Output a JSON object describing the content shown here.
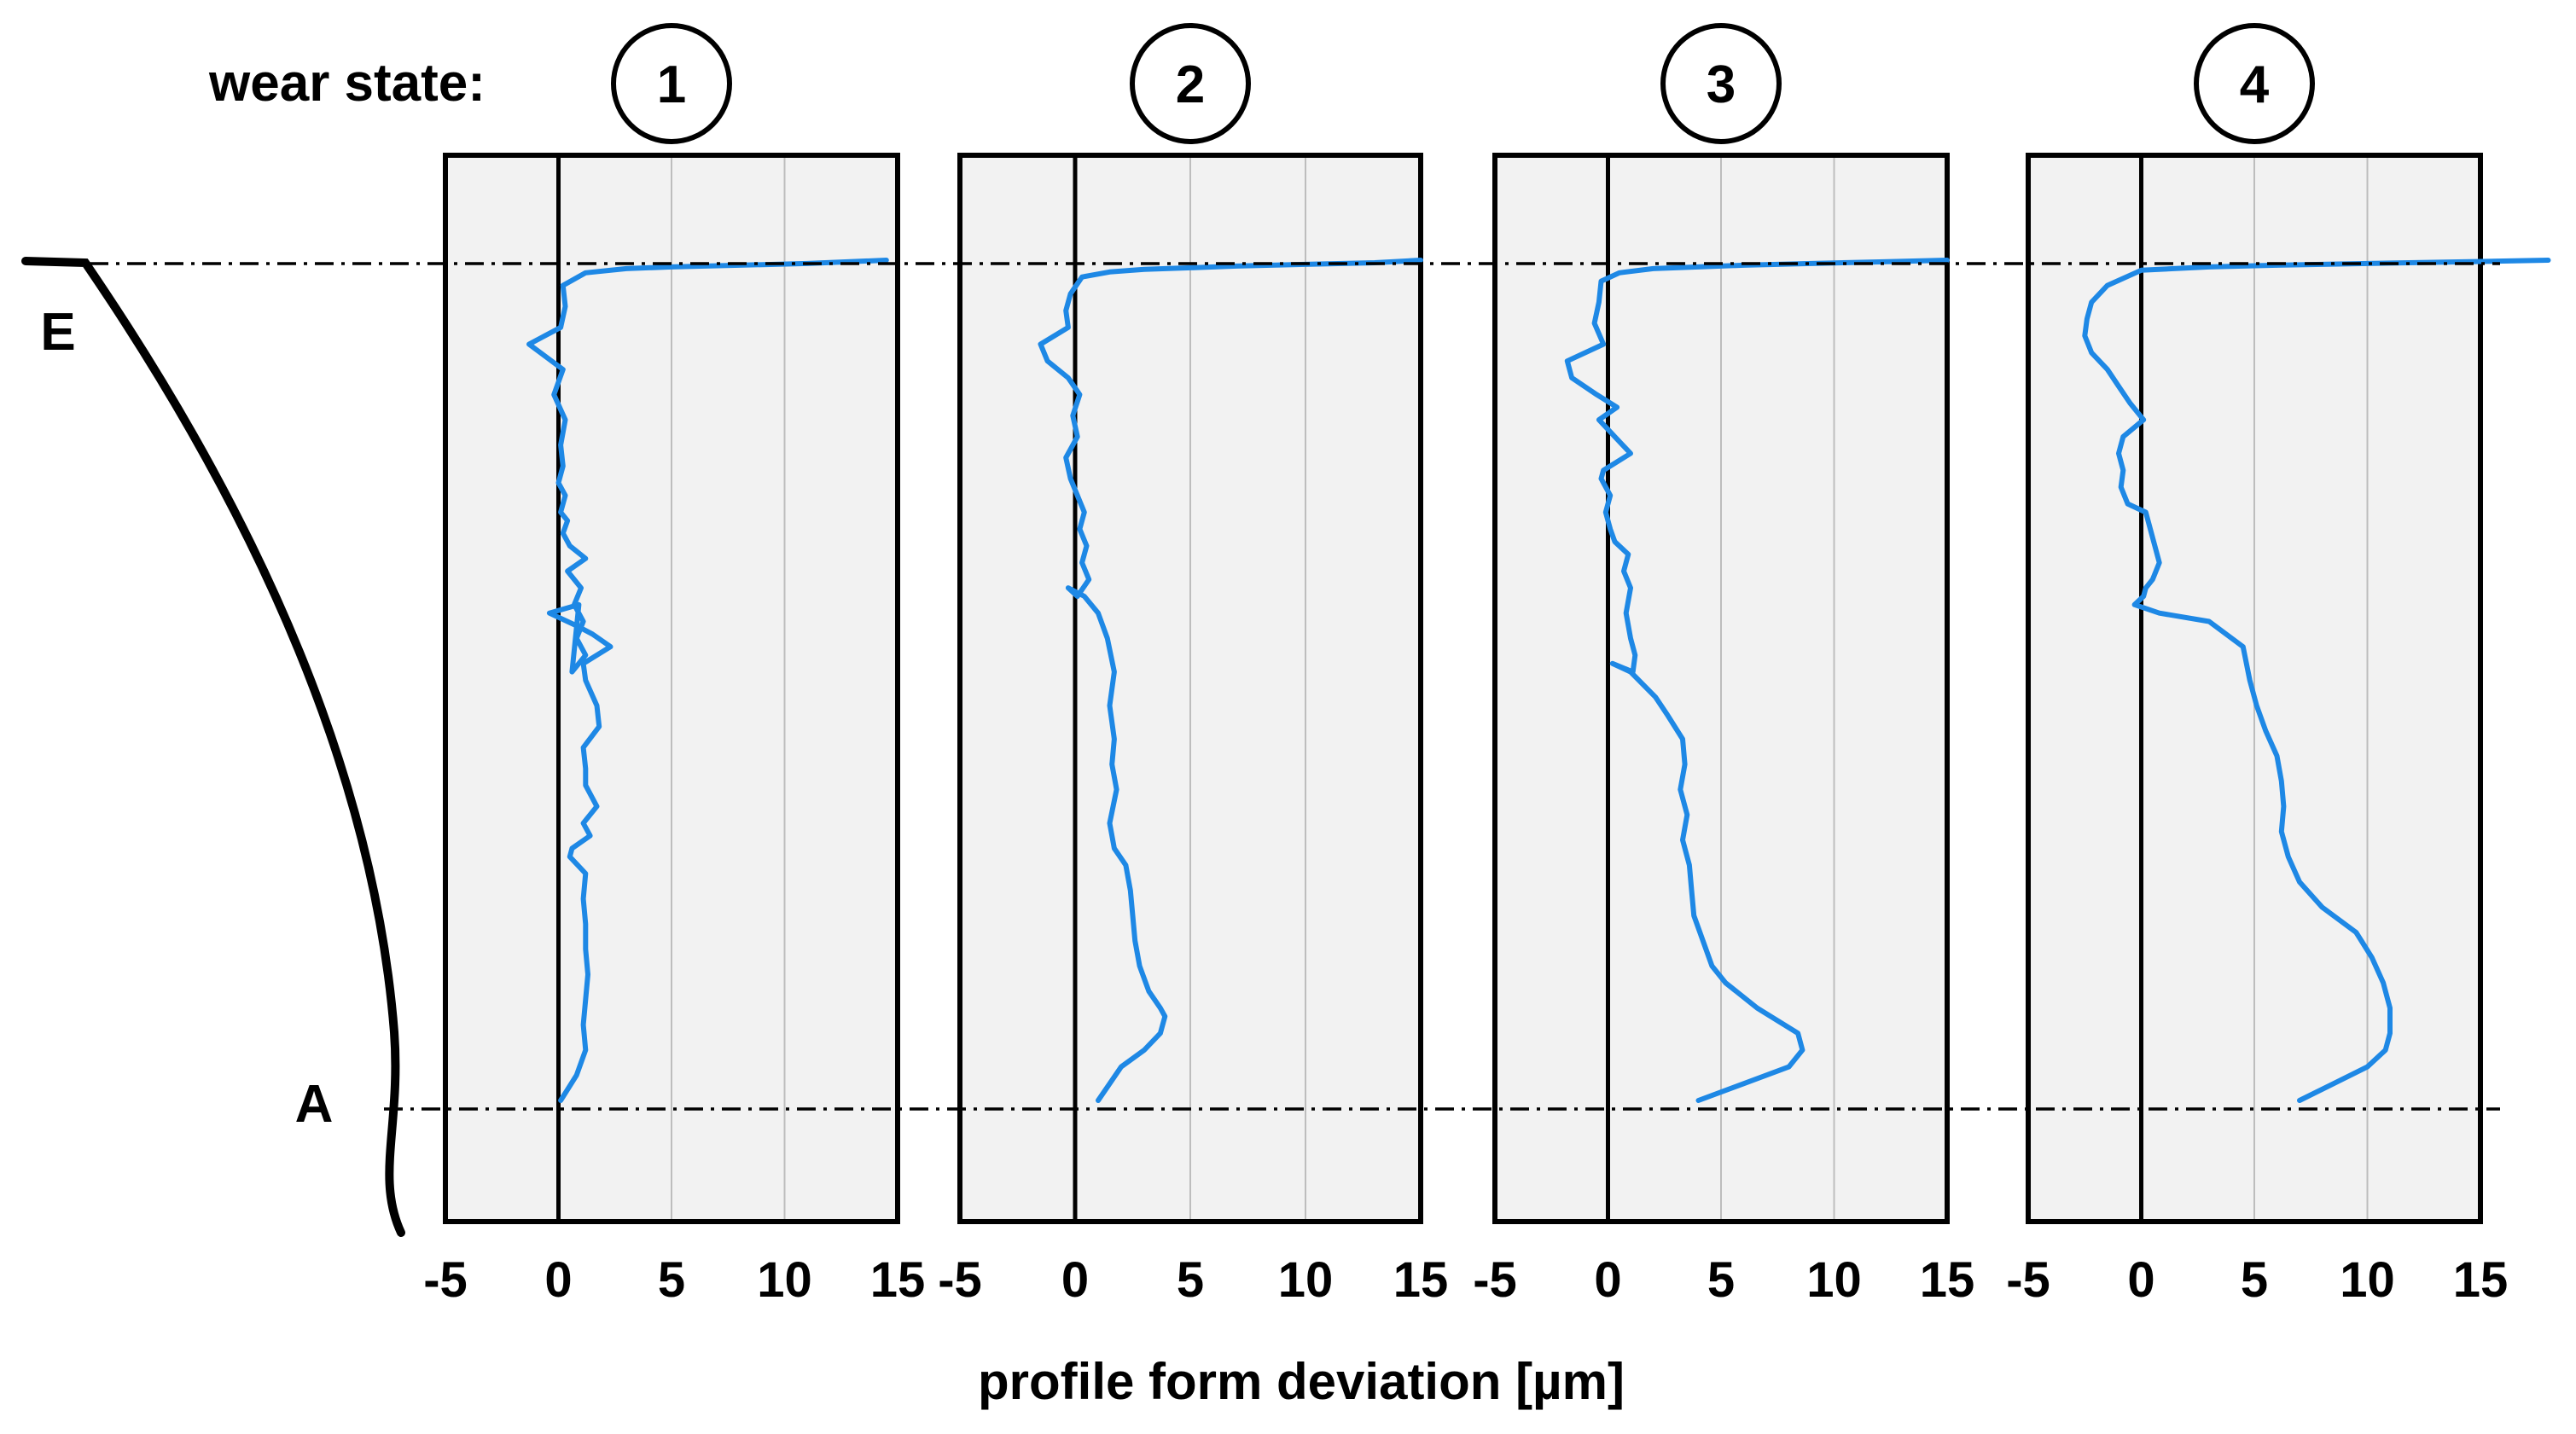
{
  "wear_label": "wear state:",
  "point_labels": {
    "top": "E",
    "bottom": "A"
  },
  "xlabel": "profile form deviation [µm]",
  "colors": {
    "trace": "#1e88e5",
    "panel": "#f2f2f2",
    "grid": "#bdbdbd"
  },
  "chart_data": [
    {
      "type": "line",
      "panel": "1",
      "xlim": [
        -5,
        15
      ],
      "ylim": [
        0,
        1
      ],
      "xticks": [
        -5,
        0,
        5,
        10,
        15
      ],
      "series": [
        {
          "name": "wear state 1",
          "x": [
            14.5,
            11,
            8,
            5,
            3,
            1.2,
            0.2,
            0.3,
            0.1,
            -1.3,
            -0.8,
            0.2,
            -0.2,
            0.3,
            0.1,
            0.2,
            0,
            0.3,
            0.1,
            0.4,
            0.2,
            0.5,
            1.2,
            0.4,
            1,
            0.7,
            1.1,
            0.8,
            1.2,
            0.6,
            0.9,
            -0.4,
            0.8,
            1.5,
            2.3,
            1.1,
            1.2,
            1.7,
            1.8,
            1.1,
            1.2,
            1.2,
            1.7,
            1.1,
            1.4,
            0.6,
            0.5,
            1.2,
            1.1,
            1.2,
            1.2,
            1.3,
            1.2,
            1.1,
            1.2,
            0.8,
            0.1
          ],
          "y": [
            0,
            0.004,
            0.006,
            0.008,
            0.01,
            0.015,
            0.03,
            0.055,
            0.08,
            0.1,
            0.11,
            0.13,
            0.16,
            0.19,
            0.22,
            0.245,
            0.265,
            0.28,
            0.3,
            0.31,
            0.325,
            0.34,
            0.355,
            0.37,
            0.39,
            0.41,
            0.43,
            0.45,
            0.47,
            0.49,
            0.41,
            0.42,
            0.435,
            0.445,
            0.46,
            0.48,
            0.5,
            0.53,
            0.555,
            0.58,
            0.605,
            0.625,
            0.65,
            0.67,
            0.685,
            0.7,
            0.71,
            0.73,
            0.76,
            0.79,
            0.82,
            0.85,
            0.88,
            0.91,
            0.94,
            0.97,
            1
          ]
        }
      ]
    },
    {
      "type": "line",
      "panel": "2",
      "xlim": [
        -5,
        15
      ],
      "ylim": [
        0,
        1
      ],
      "xticks": [
        -5,
        0,
        5,
        10,
        15
      ],
      "series": [
        {
          "name": "wear state 2",
          "x": [
            15,
            13,
            10,
            7,
            5,
            3,
            1.5,
            0.3,
            -0.2,
            -0.4,
            -0.3,
            -1.5,
            -1.2,
            -0.3,
            0.2,
            -0.1,
            0.1,
            -0.4,
            -0.2,
            0.1,
            0.4,
            0.2,
            0.5,
            0.3,
            0.6,
            0.1,
            -0.3,
            0.4,
            1,
            1.4,
            1.7,
            1.5,
            1.7,
            1.6,
            1.8,
            1.5,
            1.7,
            2.2,
            2.4,
            2.5,
            2.6,
            2.8,
            3.2,
            3.7,
            3.9,
            3.7,
            3,
            2,
            1
          ],
          "y": [
            0,
            0.003,
            0.005,
            0.007,
            0.009,
            0.011,
            0.014,
            0.02,
            0.04,
            0.06,
            0.08,
            0.1,
            0.12,
            0.14,
            0.16,
            0.185,
            0.21,
            0.235,
            0.26,
            0.28,
            0.3,
            0.32,
            0.34,
            0.36,
            0.38,
            0.4,
            0.39,
            0.4,
            0.42,
            0.45,
            0.49,
            0.53,
            0.57,
            0.6,
            0.63,
            0.67,
            0.7,
            0.72,
            0.75,
            0.78,
            0.81,
            0.84,
            0.87,
            0.89,
            0.9,
            0.92,
            0.94,
            0.96,
            1
          ]
        }
      ]
    },
    {
      "type": "line",
      "panel": "3",
      "xlim": [
        -5,
        15
      ],
      "ylim": [
        0,
        1
      ],
      "xticks": [
        -5,
        0,
        5,
        10,
        15
      ],
      "series": [
        {
          "name": "wear state 3",
          "x": [
            15,
            12,
            9,
            6,
            4,
            2,
            0.5,
            -0.3,
            -0.4,
            -0.6,
            -0.2,
            -1.8,
            -1.6,
            -0.5,
            0.4,
            -0.4,
            0.3,
            1,
            -0.2,
            -0.3,
            0.1,
            -0.1,
            0.1,
            0.3,
            0.9,
            0.7,
            1,
            0.8,
            1,
            1.2,
            1.1,
            0.2,
            1,
            2.1,
            2.6,
            3.3,
            3.4,
            3.2,
            3.5,
            3.3,
            3.6,
            3.7,
            3.8,
            4.2,
            4.6,
            5.2,
            6.6,
            8.4,
            8.6,
            8,
            6,
            4
          ],
          "y": [
            0,
            0.002,
            0.004,
            0.006,
            0.008,
            0.01,
            0.015,
            0.025,
            0.05,
            0.075,
            0.1,
            0.12,
            0.14,
            0.16,
            0.175,
            0.19,
            0.21,
            0.23,
            0.25,
            0.26,
            0.28,
            0.3,
            0.32,
            0.335,
            0.35,
            0.37,
            0.39,
            0.42,
            0.45,
            0.47,
            0.49,
            0.48,
            0.49,
            0.52,
            0.54,
            0.57,
            0.6,
            0.63,
            0.66,
            0.69,
            0.72,
            0.75,
            0.78,
            0.81,
            0.84,
            0.86,
            0.89,
            0.92,
            0.94,
            0.96,
            0.98,
            1
          ]
        }
      ]
    },
    {
      "type": "line",
      "panel": "4",
      "xlim": [
        -5,
        15
      ],
      "ylim": [
        0,
        1
      ],
      "xticks": [
        -5,
        0,
        5,
        10,
        15
      ],
      "series": [
        {
          "name": "wear state 4",
          "x": [
            18,
            14,
            10,
            6,
            3,
            0,
            -1.5,
            -2.2,
            -2.4,
            -2.5,
            -2.2,
            -1.5,
            -1,
            -0.5,
            0.1,
            -0.8,
            -1,
            -0.8,
            -0.9,
            -0.6,
            0.2,
            0.4,
            0.6,
            0.8,
            0.5,
            0.2,
            0.1,
            -0.3,
            0.8,
            3,
            4.5,
            4.8,
            5.1,
            5.5,
            6,
            6.2,
            6.3,
            6.2,
            6.5,
            7,
            8,
            9.5,
            10.2,
            10.7,
            11,
            11,
            10.8,
            10,
            8.5,
            7
          ],
          "y": [
            0,
            0.002,
            0.004,
            0.006,
            0.008,
            0.012,
            0.03,
            0.05,
            0.07,
            0.09,
            0.11,
            0.13,
            0.15,
            0.17,
            0.19,
            0.21,
            0.23,
            0.25,
            0.27,
            0.29,
            0.3,
            0.32,
            0.34,
            0.36,
            0.38,
            0.39,
            0.4,
            0.41,
            0.42,
            0.43,
            0.46,
            0.5,
            0.53,
            0.56,
            0.59,
            0.62,
            0.65,
            0.68,
            0.71,
            0.74,
            0.77,
            0.8,
            0.83,
            0.86,
            0.89,
            0.92,
            0.94,
            0.96,
            0.98,
            1
          ]
        }
      ]
    }
  ]
}
